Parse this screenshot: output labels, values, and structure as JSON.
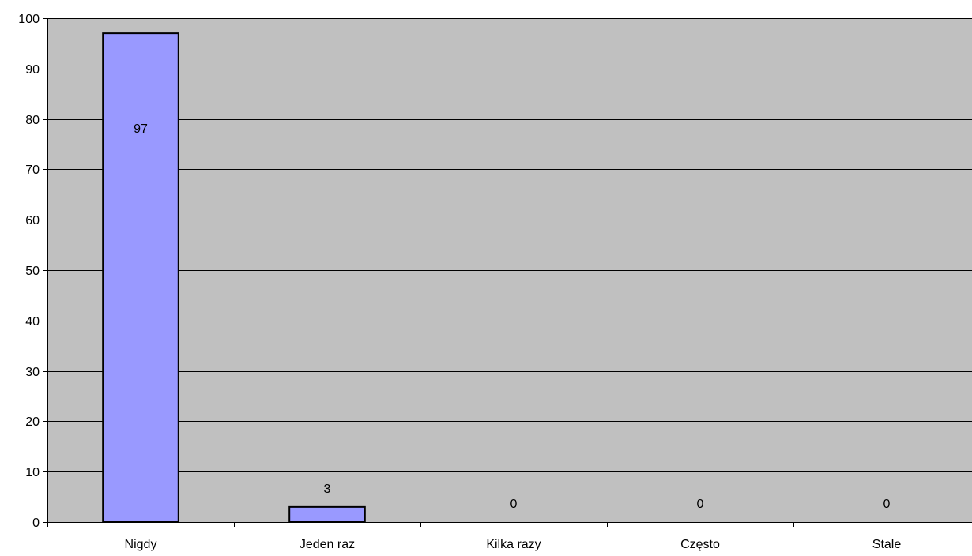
{
  "chart_data": {
    "type": "bar",
    "categories": [
      "Nigdy",
      "Jeden raz",
      "Kilka razy",
      "Często",
      "Stale"
    ],
    "values": [
      97,
      3,
      0,
      0,
      0
    ],
    "data_labels": [
      "97",
      "3",
      "0",
      "0",
      "0"
    ],
    "ylim": [
      0,
      100
    ],
    "ytick_step": 10,
    "grid": true,
    "legend": "none",
    "plot_background": "#C0C0C0",
    "bar_color": "#9999FF",
    "bar_edge_color": "#000000"
  }
}
